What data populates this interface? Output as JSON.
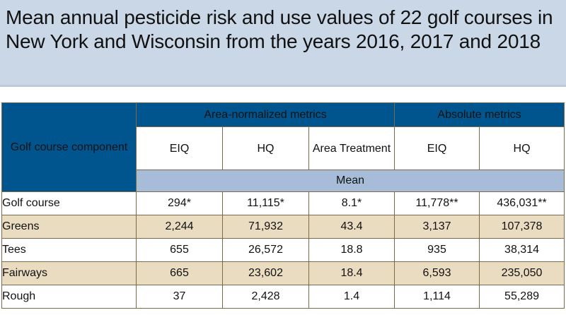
{
  "title": "Mean annual pesticide risk and use values of 22 golf courses in New York and Wisconsin from the years 2016, 2017 and 2018",
  "table": {
    "corner_header": "Golf course component",
    "group_headers": [
      "Area-normalized metrics",
      "Absolute metrics"
    ],
    "column_headers": [
      "EIQ",
      "HQ",
      "Area Treatment",
      "EIQ",
      "HQ"
    ],
    "mean_label": "Mean",
    "rows": [
      {
        "label": "Golf course",
        "values": [
          "294*",
          "11,115*",
          "8.1*",
          "11,778**",
          "436,031**"
        ]
      },
      {
        "label": "Greens",
        "values": [
          "2,244",
          "71,932",
          "43.4",
          "3,137",
          "107,378"
        ]
      },
      {
        "label": "Tees",
        "values": [
          "655",
          "26,572",
          "18.8",
          "935",
          "38,314"
        ]
      },
      {
        "label": "Fairways",
        "values": [
          "665",
          "23,602",
          "18.4",
          "6,593",
          "235,050"
        ]
      },
      {
        "label": "Rough",
        "values": [
          "37",
          "2,428",
          "1.4",
          "1,114",
          "55,289"
        ]
      }
    ]
  },
  "colors": {
    "title_bg": "#c9d7e6",
    "header_blue": "#00558f",
    "mean_band": "#a7bcd9",
    "stripe_tan": "#e9dcc1"
  }
}
